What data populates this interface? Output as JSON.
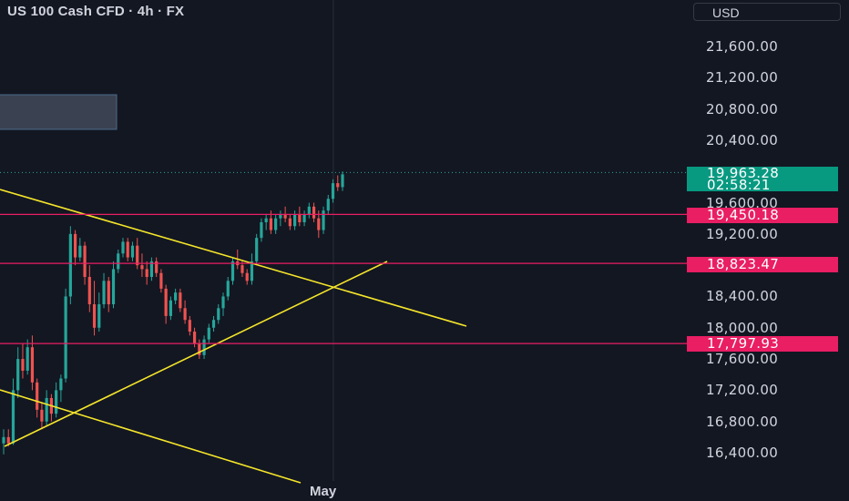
{
  "header": {
    "symbol_title": "US 100 Cash CFD · 4h · FX",
    "currency_button": "USD"
  },
  "price_axis": {
    "ticks": [
      "21,600.00",
      "21,200.00",
      "20,800.00",
      "20,400.00",
      "19,600.00",
      "19,200.00",
      "18,400.00",
      "18,000.00",
      "17,600.00",
      "17,200.00",
      "16,800.00",
      "16,400.00"
    ]
  },
  "current_price": {
    "value": "19,963.28",
    "countdown": "02:58:21",
    "color": "#089981"
  },
  "levels": [
    {
      "label": "19,450.18",
      "color": "#e91e63"
    },
    {
      "label": "18,823.47",
      "color": "#e91e63"
    },
    {
      "label": "17,797.93",
      "color": "#e91e63"
    }
  ],
  "time_axis": {
    "label": "May"
  },
  "colors": {
    "background": "#131722",
    "up_candle": "#26a69a",
    "down_candle": "#ef5350",
    "trendline": "#f5e52a",
    "level_line": "#e91e63"
  },
  "chart_data": {
    "type": "candlestick",
    "timeframe": "4h",
    "ylim": [
      16200,
      21850
    ],
    "levels": [
      19450.18,
      18823.47,
      17797.93
    ],
    "last_price": 19963.28,
    "series": [
      {
        "name": "",
        "values": [
          [
            16520,
            16700,
            16380,
            16600
          ],
          [
            16600,
            16700,
            16480,
            16520
          ],
          [
            16520,
            17350,
            16500,
            17200
          ],
          [
            17200,
            17750,
            17100,
            17600
          ],
          [
            17600,
            17800,
            17350,
            17450
          ],
          [
            17450,
            17850,
            17400,
            17750
          ],
          [
            17750,
            17900,
            17200,
            17300
          ],
          [
            17300,
            17350,
            16850,
            16950
          ],
          [
            16950,
            17050,
            16700,
            16800
          ],
          [
            16800,
            17200,
            16750,
            17100
          ],
          [
            17100,
            17150,
            16800,
            16900
          ],
          [
            16900,
            17300,
            16850,
            17200
          ],
          [
            17200,
            17400,
            17050,
            17350
          ],
          [
            17350,
            18500,
            17300,
            18400
          ],
          [
            18400,
            19300,
            18300,
            19200
          ],
          [
            19200,
            19250,
            18800,
            18900
          ],
          [
            18900,
            19150,
            18850,
            19050
          ],
          [
            19050,
            19100,
            18550,
            18650
          ],
          [
            18650,
            18800,
            18200,
            18300
          ],
          [
            18300,
            18600,
            17900,
            18000
          ],
          [
            18000,
            18450,
            17950,
            18300
          ],
          [
            18300,
            18700,
            18250,
            18600
          ],
          [
            18600,
            18650,
            18200,
            18300
          ],
          [
            18300,
            18850,
            18250,
            18750
          ],
          [
            18750,
            19000,
            18700,
            18950
          ],
          [
            18950,
            19150,
            18900,
            19100
          ],
          [
            19100,
            19150,
            18850,
            18900
          ],
          [
            18900,
            19100,
            18850,
            19050
          ],
          [
            19050,
            19150,
            18750,
            18800
          ],
          [
            18800,
            18950,
            18650,
            18750
          ],
          [
            18750,
            18850,
            18550,
            18650
          ],
          [
            18650,
            18900,
            18600,
            18850
          ],
          [
            18850,
            18900,
            18650,
            18700
          ],
          [
            18700,
            18750,
            18450,
            18500
          ],
          [
            18500,
            18550,
            18050,
            18150
          ],
          [
            18150,
            18400,
            18100,
            18350
          ],
          [
            18350,
            18500,
            18300,
            18450
          ],
          [
            18450,
            18500,
            18200,
            18250
          ],
          [
            18250,
            18350,
            18050,
            18100
          ],
          [
            18100,
            18150,
            17900,
            17950
          ],
          [
            17950,
            18000,
            17750,
            17800
          ],
          [
            17800,
            17850,
            17600,
            17650
          ],
          [
            17650,
            17900,
            17600,
            17850
          ],
          [
            17850,
            18050,
            17800,
            18000
          ],
          [
            18000,
            18150,
            17950,
            18100
          ],
          [
            18100,
            18300,
            18050,
            18250
          ],
          [
            18250,
            18450,
            18150,
            18400
          ],
          [
            18400,
            18650,
            18350,
            18600
          ],
          [
            18600,
            18900,
            18550,
            18850
          ],
          [
            18850,
            19000,
            18750,
            18800
          ],
          [
            18800,
            18850,
            18650,
            18700
          ],
          [
            18700,
            18750,
            18550,
            18600
          ],
          [
            18600,
            18950,
            18550,
            18850
          ],
          [
            18850,
            19200,
            18800,
            19150
          ],
          [
            19150,
            19400,
            19100,
            19350
          ],
          [
            19350,
            19450,
            19250,
            19400
          ],
          [
            19400,
            19500,
            19200,
            19250
          ],
          [
            19250,
            19450,
            19200,
            19400
          ],
          [
            19400,
            19500,
            19300,
            19450
          ],
          [
            19450,
            19550,
            19350,
            19400
          ],
          [
            19400,
            19450,
            19250,
            19300
          ],
          [
            19300,
            19500,
            19250,
            19450
          ],
          [
            19450,
            19550,
            19300,
            19350
          ],
          [
            19350,
            19500,
            19300,
            19450
          ],
          [
            19450,
            19600,
            19400,
            19550
          ],
          [
            19550,
            19600,
            19350,
            19400
          ],
          [
            19400,
            19500,
            19150,
            19250
          ],
          [
            19250,
            19550,
            19200,
            19500
          ],
          [
            19500,
            19700,
            19450,
            19650
          ],
          [
            19650,
            19900,
            19600,
            19850
          ],
          [
            19850,
            19950,
            19750,
            19800
          ],
          [
            19800,
            20000,
            19750,
            19963
          ]
        ]
      }
    ]
  }
}
